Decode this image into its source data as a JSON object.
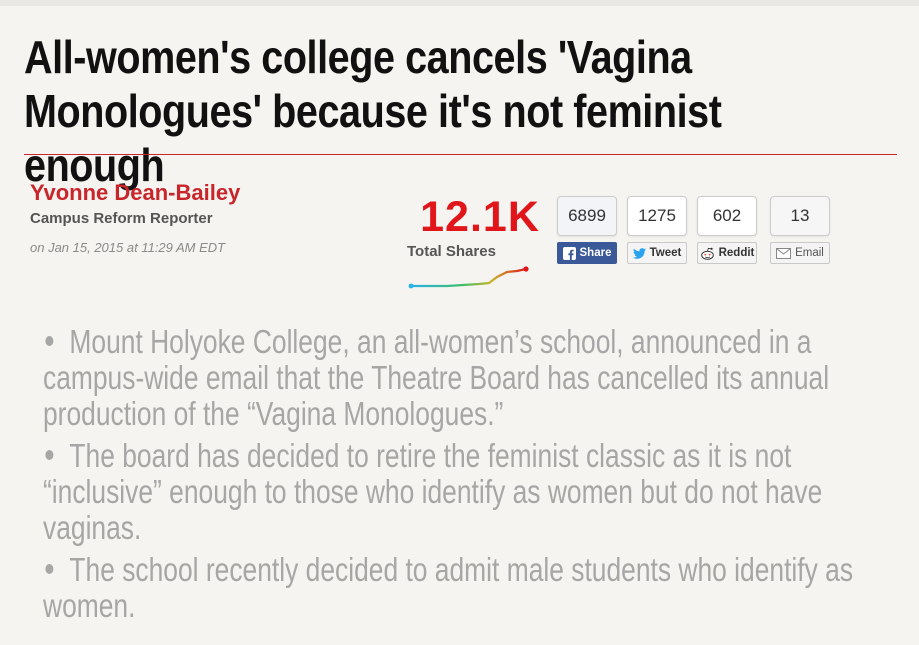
{
  "article": {
    "headline": "All-women's college cancels 'Vagina Monologues' because it's not feminist enough",
    "author": {
      "name": "Yvonne Dean-Bailey",
      "title": "Campus Reform Reporter",
      "date": "on Jan 15, 2015 at 11:29 AM EDT"
    },
    "bullets": [
      "Mount Holyoke College, an all-women’s school, announced in a campus-wide email that the Theatre Board has cancelled its annual production of the “Vagina Monologues.”",
      "The board has decided to retire the feminist classic as it is not “inclusive” enough to those who identify as women but do not have vaginas.",
      "The school recently decided to admit male students who identify as women."
    ]
  },
  "shares": {
    "total_count": "12.1K",
    "total_label": "Total Shares",
    "services": [
      {
        "count": "6899",
        "label": "Share",
        "icon": "facebook-icon"
      },
      {
        "count": "1275",
        "label": "Tweet",
        "icon": "twitter-icon"
      },
      {
        "count": "602",
        "label": "Reddit",
        "icon": "reddit-icon"
      },
      {
        "count": "13",
        "label": "Email",
        "icon": "envelope-icon"
      }
    ]
  },
  "colors": {
    "accent_red": "#c9262c",
    "share_total_red": "#e0161b",
    "facebook_blue": "#3b5998",
    "bullet_gray": "#a6a6a6"
  }
}
